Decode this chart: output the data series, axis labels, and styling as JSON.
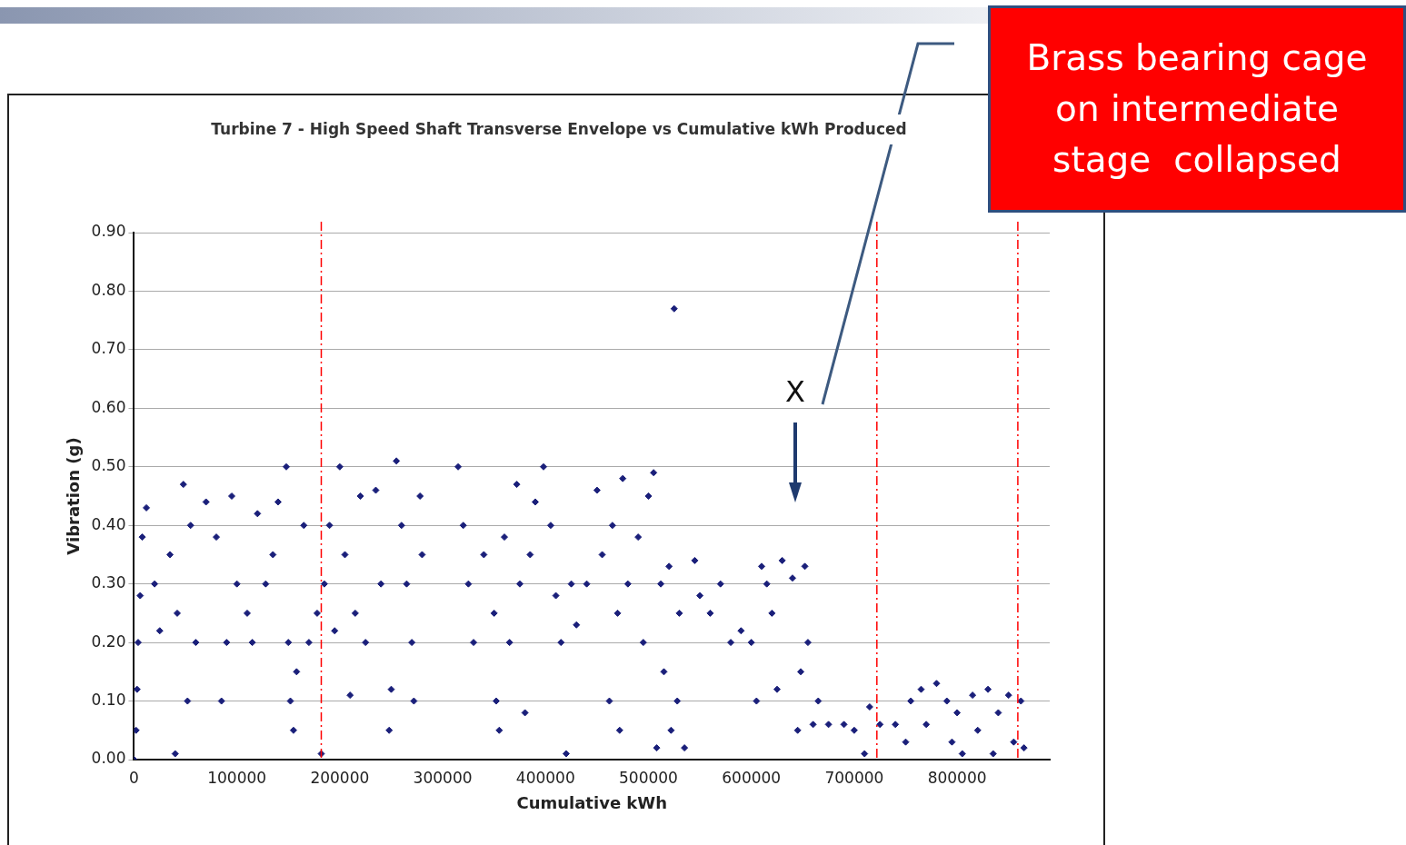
{
  "chart_data": {
    "type": "scatter",
    "title": "Turbine 7 - High Speed Shaft Transverse Envelope vs Cumulative kWh Produced",
    "xlabel": "Cumulative kWh",
    "ylabel": "Vibration (g)",
    "xlim": [
      0,
      890000
    ],
    "xticks": [
      0,
      100000,
      200000,
      300000,
      400000,
      500000,
      600000,
      700000,
      800000
    ],
    "ylim": [
      0,
      0.9
    ],
    "yticks": [
      {
        "value": 0,
        "label": "0.00"
      },
      {
        "value": 0.1,
        "label": "0.10"
      },
      {
        "value": 0.2,
        "label": "0.20"
      },
      {
        "value": 0.3,
        "label": "0.30"
      },
      {
        "value": 0.4,
        "label": "0.40"
      },
      {
        "value": 0.5,
        "label": "0.50"
      },
      {
        "value": 0.6,
        "label": "0.60"
      },
      {
        "value": 0.7,
        "label": "0.70"
      },
      {
        "value": 0.8,
        "label": "0.80"
      },
      {
        "value": 0.9,
        "label": "0.90"
      }
    ],
    "grid": "y",
    "legend": false,
    "marker": "diamond",
    "series": [
      {
        "color": "#1a1f7a",
        "x": [
          0,
          2000,
          3000,
          4000,
          6000,
          8000,
          12000,
          20000,
          25000,
          35000,
          40000,
          42000,
          48000,
          52000,
          55000,
          60000,
          70000,
          80000,
          85000,
          90000,
          95000,
          100000,
          110000,
          115000,
          120000,
          128000,
          135000,
          140000,
          148000,
          150000,
          152000,
          155000,
          158000,
          165000,
          170000,
          178000,
          182000,
          185000,
          190000,
          195000,
          200000,
          205000,
          210000,
          215000,
          220000,
          225000,
          235000,
          240000,
          248000,
          250000,
          255000,
          260000,
          265000,
          270000,
          272000,
          278000,
          280000,
          315000,
          320000,
          325000,
          330000,
          340000,
          350000,
          352000,
          355000,
          360000,
          365000,
          372000,
          375000,
          380000,
          385000,
          390000,
          398000,
          405000,
          410000,
          415000,
          420000,
          425000,
          430000,
          440000,
          450000,
          455000,
          462000,
          465000,
          470000,
          472000,
          475000,
          480000,
          490000,
          495000,
          500000,
          505000,
          508000,
          512000,
          515000,
          520000,
          522000,
          525000,
          528000,
          530000,
          535000,
          545000,
          550000,
          560000,
          570000,
          580000,
          590000,
          600000,
          605000,
          610000,
          615000,
          620000,
          625000,
          630000,
          640000,
          645000,
          648000,
          652000,
          655000,
          660000,
          665000,
          675000,
          690000,
          700000,
          710000,
          715000,
          725000,
          740000,
          750000,
          755000,
          765000,
          770000,
          780000,
          790000,
          795000,
          800000,
          805000,
          815000,
          820000,
          830000,
          835000,
          840000,
          850000,
          855000,
          862000,
          865000
        ],
        "values": [
          0.0,
          0.05,
          0.12,
          0.2,
          0.28,
          0.38,
          0.43,
          0.3,
          0.22,
          0.35,
          0.01,
          0.25,
          0.47,
          0.1,
          0.4,
          0.2,
          0.44,
          0.38,
          0.1,
          0.2,
          0.45,
          0.3,
          0.25,
          0.2,
          0.42,
          0.3,
          0.35,
          0.44,
          0.5,
          0.2,
          0.1,
          0.05,
          0.15,
          0.4,
          0.2,
          0.25,
          0.01,
          0.3,
          0.4,
          0.22,
          0.5,
          0.35,
          0.11,
          0.25,
          0.45,
          0.2,
          0.46,
          0.3,
          0.05,
          0.12,
          0.51,
          0.4,
          0.3,
          0.2,
          0.1,
          0.45,
          0.35,
          0.5,
          0.4,
          0.3,
          0.2,
          0.35,
          0.25,
          0.1,
          0.05,
          0.38,
          0.2,
          0.47,
          0.3,
          0.08,
          0.35,
          0.44,
          0.5,
          0.4,
          0.28,
          0.2,
          0.01,
          0.3,
          0.23,
          0.3,
          0.46,
          0.35,
          0.1,
          0.4,
          0.25,
          0.05,
          0.48,
          0.3,
          0.38,
          0.2,
          0.45,
          0.49,
          0.02,
          0.3,
          0.15,
          0.33,
          0.05,
          0.77,
          0.1,
          0.25,
          0.02,
          0.34,
          0.28,
          0.25,
          0.3,
          0.2,
          0.22,
          0.2,
          0.1,
          0.33,
          0.3,
          0.25,
          0.12,
          0.34,
          0.31,
          0.05,
          0.15,
          0.33,
          0.2,
          0.06,
          0.1,
          0.06,
          0.06,
          0.05,
          0.01,
          0.09,
          0.06,
          0.06,
          0.03,
          0.1,
          0.12,
          0.06,
          0.13,
          0.1,
          0.03,
          0.08,
          0.01,
          0.11,
          0.05,
          0.12,
          0.01,
          0.08,
          0.11,
          0.03,
          0.1,
          0.02
        ]
      }
    ],
    "ref_lines": [
      {
        "axis": "x",
        "value": 182000,
        "color": "#ff0000",
        "line_style": "dashed"
      },
      {
        "axis": "x",
        "value": 722000,
        "color": "#ff0000",
        "line_style": "dashed"
      },
      {
        "axis": "x",
        "value": 859000,
        "color": "#ff0000",
        "line_style": "dashed"
      }
    ],
    "annotations": [
      "Brass bearing cage on intermediate stage  collapsed",
      "X"
    ]
  }
}
